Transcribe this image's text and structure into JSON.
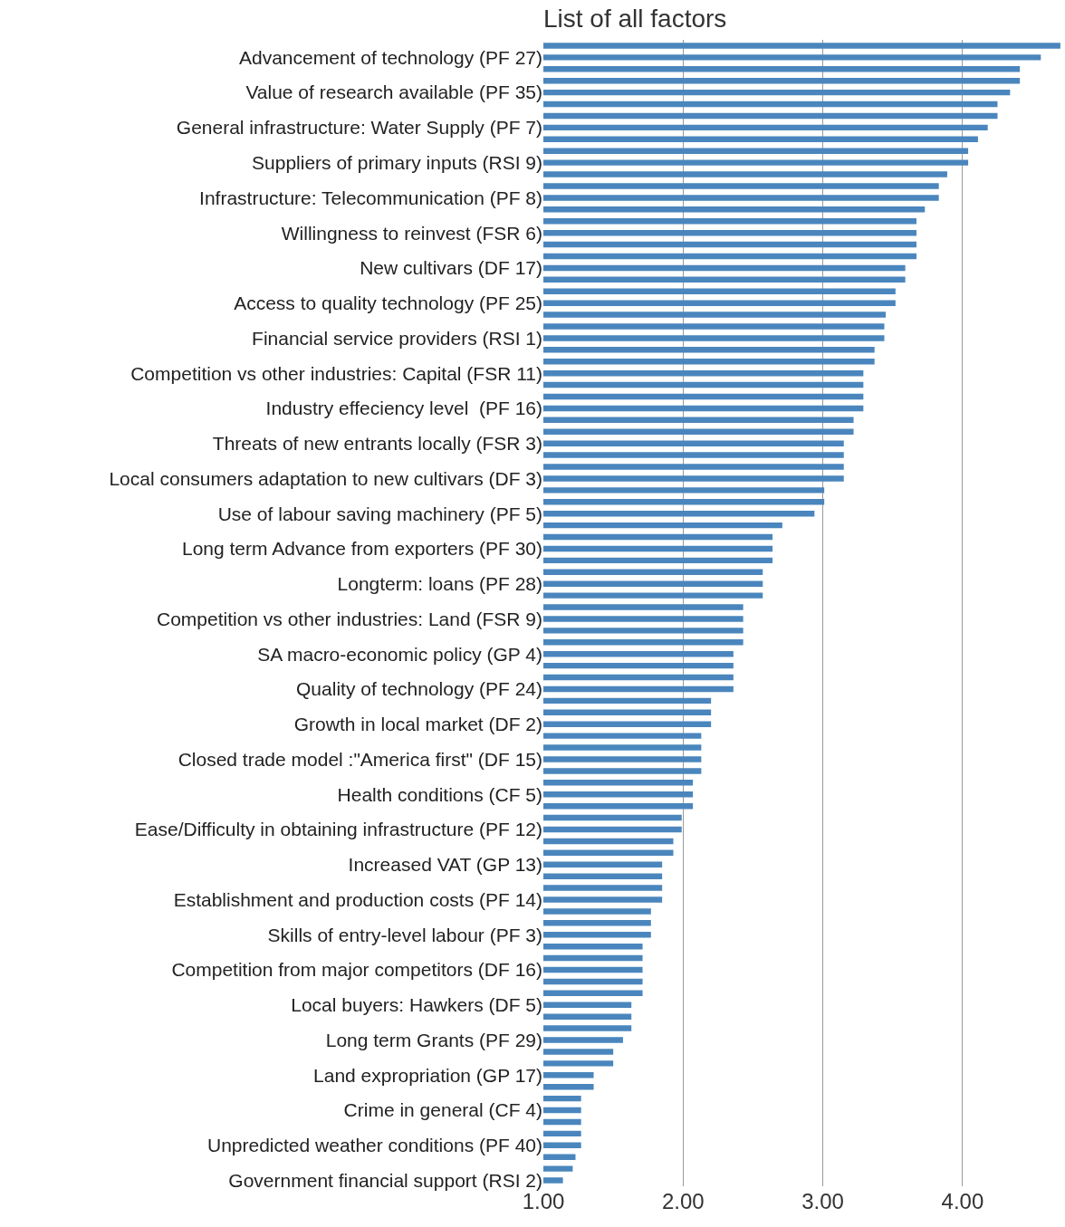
{
  "chart_data": {
    "type": "bar",
    "orientation": "horizontal",
    "title": "List of all factors",
    "categories": [
      null,
      "Advancement of technology (PF 27)",
      null,
      null,
      "Value of research available (PF 35)",
      null,
      null,
      "General infrastructure: Water Supply (PF 7)",
      null,
      null,
      "Suppliers of primary inputs (RSI 9)",
      null,
      null,
      "Infrastructure: Telecommunication (PF 8)",
      null,
      null,
      "Willingness to reinvest (FSR 6)",
      null,
      null,
      "New cultivars (DF 17)",
      null,
      null,
      "Access to quality technology (PF 25)",
      null,
      null,
      "Financial service providers (RSI 1)",
      null,
      null,
      "Competition vs other industries: Capital (FSR 11)",
      null,
      null,
      "Industry effeciency level  (PF 16)",
      null,
      null,
      "Threats of new entrants locally (FSR 3)",
      null,
      null,
      "Local consumers adaptation to new cultivars (DF 3)",
      null,
      null,
      "Use of labour saving machinery (PF 5)",
      null,
      null,
      "Long term Advance from exporters (PF 30)",
      null,
      null,
      "Longterm: loans (PF 28)",
      null,
      null,
      "Competition vs other industries: Land (FSR 9)",
      null,
      null,
      "SA macro-economic policy (GP 4)",
      null,
      null,
      "Quality of technology (PF 24)",
      null,
      null,
      "Growth in local market (DF 2)",
      null,
      null,
      "Closed trade model :\"America first\" (DF 15)",
      null,
      null,
      "Health conditions (CF 5)",
      null,
      null,
      "Ease/Difficulty in obtaining infrastructure (PF 12)",
      null,
      null,
      "Increased VAT (GP 13)",
      null,
      null,
      "Establishment and production costs (PF 14)",
      null,
      null,
      "Skills of entry-level labour (PF 3)",
      null,
      null,
      "Competition from major competitors (DF 16)",
      null,
      null,
      "Local buyers: Hawkers (DF 5)",
      null,
      null,
      "Long term Grants (PF 29)",
      null,
      null,
      "Land expropriation (GP 17)",
      null,
      null,
      "Crime in general (CF 4)",
      null,
      null,
      "Unpredicted weather conditions (PF 40)",
      null,
      null,
      "Government financial support (RSI 2)"
    ],
    "values": [
      4.7,
      4.56,
      4.41,
      4.41,
      4.34,
      4.25,
      4.25,
      4.18,
      4.11,
      4.04,
      4.04,
      3.89,
      3.83,
      3.83,
      3.73,
      3.67,
      3.67,
      3.67,
      3.67,
      3.59,
      3.59,
      3.52,
      3.52,
      3.45,
      3.44,
      3.44,
      3.37,
      3.37,
      3.29,
      3.29,
      3.29,
      3.29,
      3.22,
      3.22,
      3.15,
      3.15,
      3.15,
      3.15,
      3.01,
      3.01,
      2.94,
      2.71,
      2.64,
      2.64,
      2.64,
      2.57,
      2.57,
      2.57,
      2.43,
      2.43,
      2.43,
      2.43,
      2.36,
      2.36,
      2.36,
      2.36,
      2.2,
      2.2,
      2.2,
      2.13,
      2.13,
      2.13,
      2.13,
      2.07,
      2.07,
      2.07,
      1.99,
      1.99,
      1.93,
      1.93,
      1.85,
      1.85,
      1.85,
      1.85,
      1.77,
      1.77,
      1.77,
      1.71,
      1.71,
      1.71,
      1.71,
      1.71,
      1.63,
      1.63,
      1.63,
      1.57,
      1.5,
      1.5,
      1.36,
      1.36,
      1.27,
      1.27,
      1.27,
      1.27,
      1.27,
      1.23,
      1.21,
      1.14
    ],
    "color": "#4a86bd",
    "xlim": [
      1,
      4.72
    ],
    "xticks": [
      {
        "value": 1,
        "label": "1.00"
      },
      {
        "value": 2,
        "label": "2.00"
      },
      {
        "value": 3,
        "label": "3.00"
      },
      {
        "value": 4,
        "label": "4.00"
      }
    ],
    "grid": "x"
  }
}
